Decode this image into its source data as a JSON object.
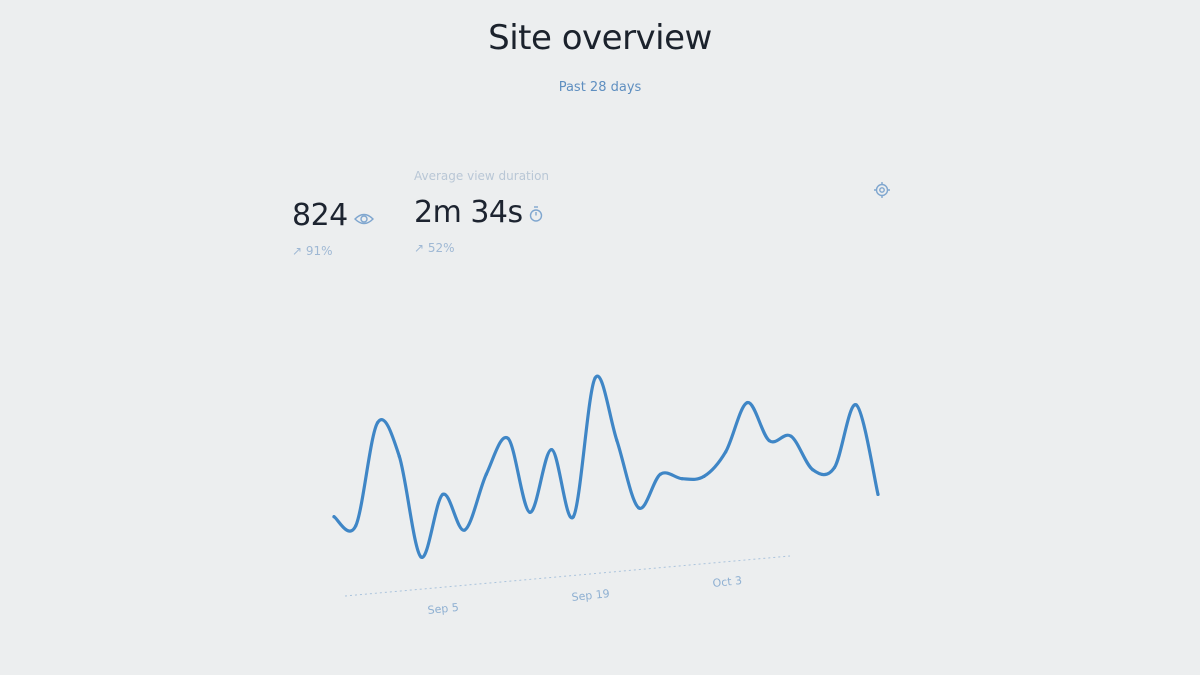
{
  "header": {
    "title": "Site overview",
    "subtitle": "Past 28 days"
  },
  "metrics": [
    {
      "label": "",
      "value": "824",
      "icon": "eye-icon",
      "change": "↗ 91%"
    },
    {
      "label": "Average view duration",
      "value": "2m 34s",
      "icon": "stopwatch-icon",
      "change": "↗ 52%"
    }
  ],
  "settings_icon": "gear-icon",
  "colors": {
    "line": "#3f86c6",
    "accent": "#5f8fc0",
    "background": "#eceeef"
  },
  "chart_data": {
    "type": "line",
    "title": "",
    "xlabel": "",
    "ylabel": "",
    "x_tick_labels": [
      "Sep 5",
      "Sep 19",
      "Oct 3"
    ],
    "grid": false,
    "values": [
      38,
      34,
      80,
      65,
      20,
      48,
      32,
      57,
      73,
      40,
      68,
      38,
      100,
      72,
      42,
      57,
      55,
      56,
      67,
      89,
      72,
      74,
      59,
      60,
      88,
      48
    ]
  }
}
